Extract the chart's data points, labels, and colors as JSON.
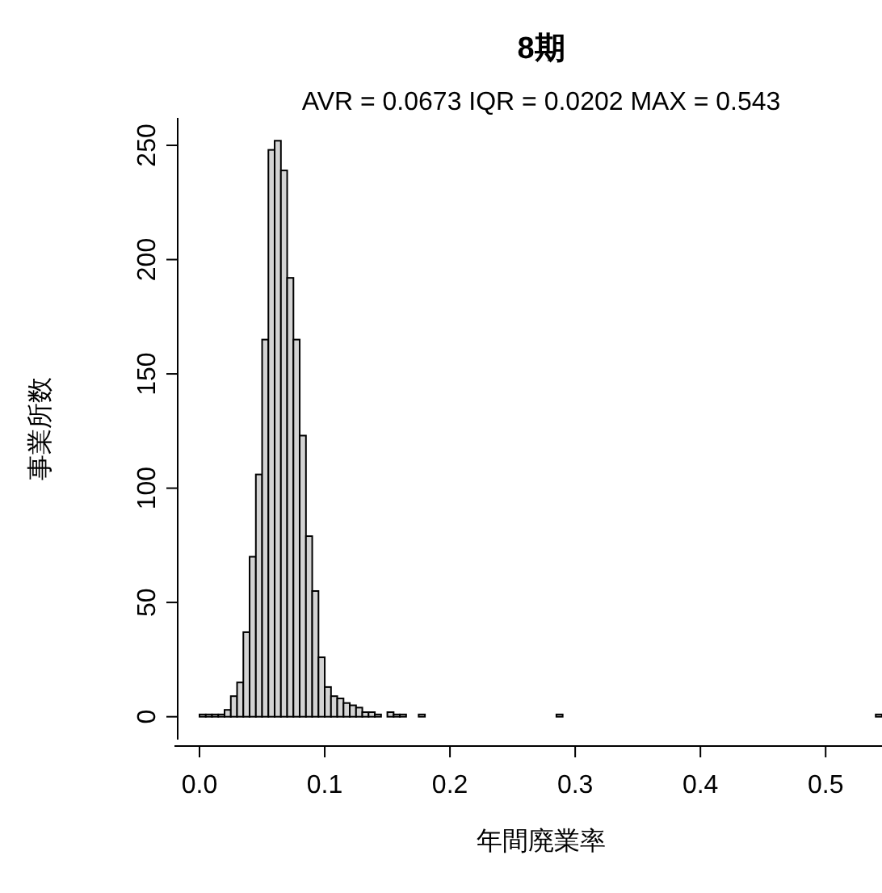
{
  "chart_data": {
    "type": "histogram",
    "title": "8期",
    "subtitle": "AVR = 0.0673  IQR = 0.0202  MAX = 0.543",
    "xlabel": "年間廃業率",
    "ylabel": "事業所数",
    "bins": [
      0,
      0.005,
      0.01,
      0.015,
      0.02,
      0.025,
      0.03,
      0.035,
      0.04,
      0.045,
      0.05,
      0.055,
      0.06,
      0.065,
      0.07,
      0.075,
      0.08,
      0.085,
      0.09,
      0.095,
      0.1,
      0.105,
      0.11,
      0.115,
      0.12,
      0.125,
      0.13,
      0.135,
      0.14,
      0.145,
      0.15,
      0.155,
      0.16,
      0.165,
      0.17,
      0.175,
      0.18,
      0.185,
      0.19,
      0.195,
      0.2,
      0.205,
      0.21,
      0.215,
      0.22,
      0.225,
      0.23,
      0.235,
      0.24,
      0.245,
      0.25,
      0.255,
      0.26,
      0.265,
      0.27,
      0.275,
      0.28,
      0.285,
      0.29,
      0.295,
      0.3,
      0.305,
      0.31,
      0.315,
      0.32,
      0.325,
      0.33,
      0.335,
      0.34,
      0.345,
      0.35,
      0.355,
      0.36,
      0.365,
      0.37,
      0.375,
      0.38,
      0.385,
      0.39,
      0.395,
      0.4,
      0.405,
      0.41,
      0.415,
      0.42,
      0.425,
      0.43,
      0.435,
      0.44,
      0.445,
      0.45,
      0.455,
      0.46,
      0.465,
      0.47,
      0.475,
      0.48,
      0.485,
      0.49,
      0.495,
      0.5,
      0.505,
      0.51,
      0.515,
      0.52,
      0.525,
      0.53,
      0.535,
      0.54,
      0.545
    ],
    "values": [
      1,
      1,
      1,
      1,
      3,
      9,
      15,
      37,
      70,
      106,
      165,
      248,
      252,
      239,
      192,
      165,
      123,
      79,
      55,
      26,
      13,
      9,
      8,
      6,
      5,
      4,
      2,
      2,
      1,
      0,
      2,
      1,
      1,
      0,
      0,
      1,
      0,
      0,
      0,
      0,
      0,
      0,
      0,
      0,
      0,
      0,
      0,
      0,
      0,
      0,
      0,
      0,
      0,
      0,
      0,
      0,
      0,
      1,
      0,
      0,
      0,
      0,
      0,
      0,
      0,
      0,
      0,
      0,
      0,
      0,
      0,
      0,
      0,
      0,
      0,
      0,
      0,
      0,
      0,
      0,
      0,
      0,
      0,
      0,
      0,
      0,
      0,
      0,
      0,
      0,
      0,
      0,
      0,
      0,
      0,
      0,
      0,
      0,
      0,
      0,
      0,
      0,
      0,
      0,
      0,
      0,
      0,
      0,
      1
    ],
    "color": "#d3d3d3",
    "xlim": [
      -0.02,
      0.545
    ],
    "xticks": [
      {
        "value": 0,
        "label": "0.0"
      },
      0.1,
      0.2,
      0.3,
      0.4,
      0.5
    ],
    "ylim": [
      -10,
      262
    ],
    "yticks": [
      0,
      50,
      100,
      150,
      200,
      250
    ],
    "grid": false
  }
}
